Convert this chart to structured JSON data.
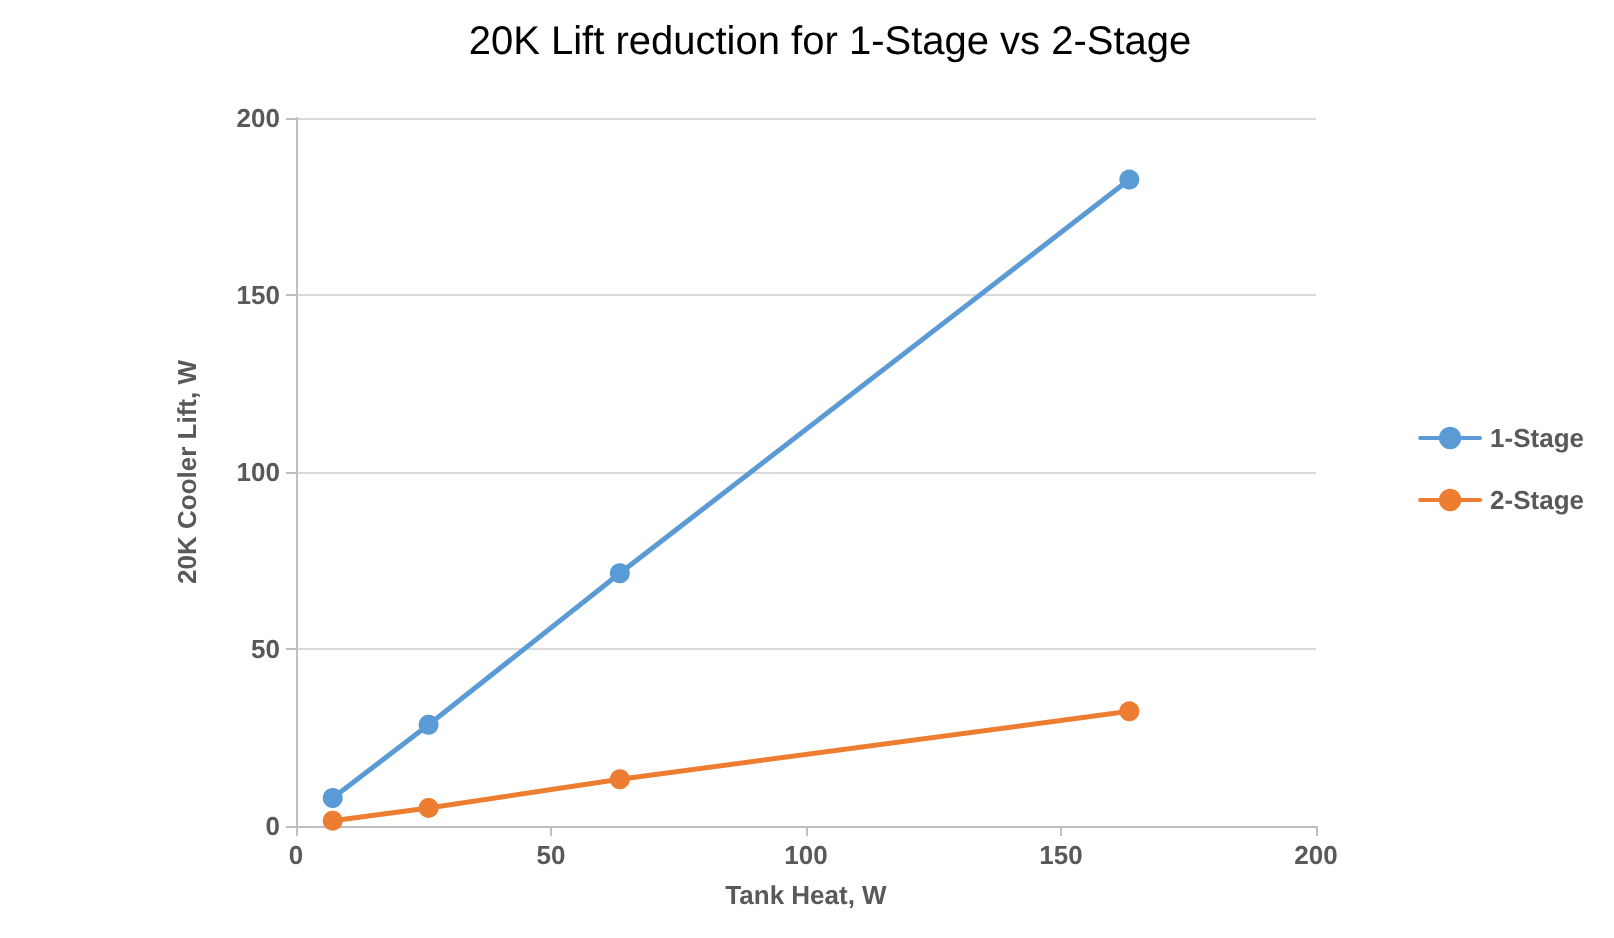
{
  "chart_data": {
    "type": "line",
    "title": "20K Lift reduction for 1-Stage vs 2-Stage",
    "xlabel": "Tank Heat, W",
    "ylabel": "20K Cooler Lift, W",
    "x": [
      7.2,
      26,
      63.5,
      163.4
    ],
    "series": [
      {
        "name": "1-Stage",
        "color": "#5b9bd5",
        "values": [
          7.9,
          28.6,
          71.4,
          182.6
        ]
      },
      {
        "name": "2-Stage",
        "color": "#ed7d31",
        "values": [
          1.5,
          5.1,
          13.2,
          32.4
        ]
      }
    ],
    "xlim": [
      0,
      200
    ],
    "xticks": [
      0,
      50,
      100,
      150,
      200
    ],
    "ylim": [
      0,
      200
    ],
    "yticks": [
      0,
      50,
      100,
      150,
      200
    ],
    "grid": "y",
    "legend": "right",
    "marker": "circle",
    "line_style": "solid"
  }
}
